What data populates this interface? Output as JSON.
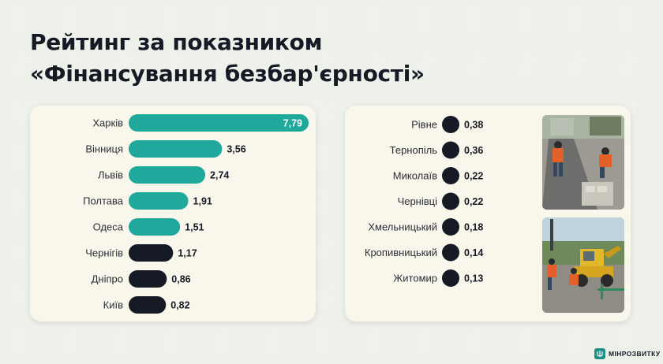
{
  "title": {
    "line1": "Рейтинг за показником",
    "line2": "«Фінансування безбар'єрності»"
  },
  "chart_data": [
    {
      "type": "bar",
      "orientation": "horizontal",
      "categories": [
        "Харків",
        "Вінниця",
        "Львів",
        "Полтава",
        "Одеса",
        "Чернігів",
        "Дніпро",
        "Київ"
      ],
      "values": [
        7.79,
        3.56,
        2.74,
        1.91,
        1.51,
        1.17,
        0.86,
        0.82
      ],
      "labels": [
        "7,79",
        "3,56",
        "2,74",
        "1,91",
        "1,51",
        "1,17",
        "0,86",
        "0,82"
      ],
      "colors": [
        "#1fa99c",
        "#1fa99c",
        "#1fa99c",
        "#1fa99c",
        "#1fa99c",
        "#151a24",
        "#151a24",
        "#151a24"
      ],
      "xlim": [
        0,
        7.79
      ]
    },
    {
      "type": "bar",
      "orientation": "horizontal",
      "categories": [
        "Рівне",
        "Тернопіль",
        "Миколаїв",
        "Чернівці",
        "Хмельницький",
        "Кропивницький",
        "Житомир"
      ],
      "values": [
        0.38,
        0.36,
        0.22,
        0.22,
        0.18,
        0.14,
        0.13
      ],
      "labels": [
        "0,38",
        "0,36",
        "0,22",
        "0,22",
        "0,18",
        "0,14",
        "0,13"
      ],
      "colors": [
        "#151a24",
        "#151a24",
        "#151a24",
        "#151a24",
        "#151a24",
        "#151a24",
        "#151a24"
      ],
      "xlim": [
        0,
        7.79
      ]
    }
  ],
  "logo": {
    "text": "МІНРОЗВИТКУ",
    "icon": "trident-icon",
    "color": "#1e8f86"
  },
  "photos": [
    {
      "icon": "photo-road-works"
    },
    {
      "icon": "photo-excavator-works"
    }
  ]
}
